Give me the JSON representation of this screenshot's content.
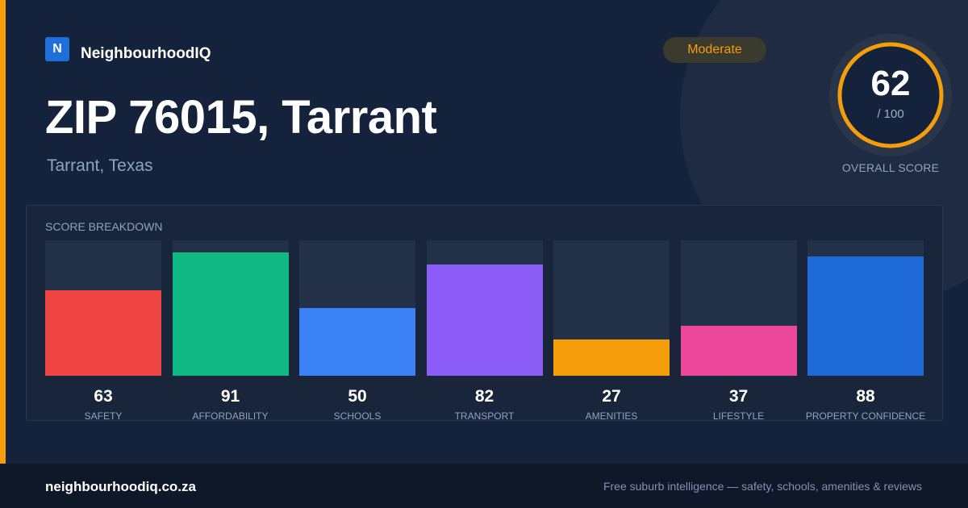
{
  "brand": {
    "logo_letter": "N",
    "name": "NeighbourhoodIQ"
  },
  "header": {
    "title": "ZIP 76015, Tarrant",
    "subtitle": "Tarrant, Texas",
    "badge": "Moderate"
  },
  "overall": {
    "score": "62",
    "max": "/ 100",
    "label": "OVERALL SCORE",
    "fraction": 0.62
  },
  "breakdown": {
    "title": "SCORE BREAKDOWN",
    "items": [
      {
        "label": "SAFETY",
        "value": 63,
        "color": "#ef4444"
      },
      {
        "label": "AFFORDABILITY",
        "value": 91,
        "color": "#10b981"
      },
      {
        "label": "SCHOOLS",
        "value": 50,
        "color": "#3b82f6"
      },
      {
        "label": "TRANSPORT",
        "value": 82,
        "color": "#8b5cf6"
      },
      {
        "label": "AMENITIES",
        "value": 27,
        "color": "#f59e0b"
      },
      {
        "label": "LIFESTYLE",
        "value": 37,
        "color": "#ec4899"
      },
      {
        "label": "PROPERTY CONFIDENCE",
        "value": 88,
        "color": "#1d6ad8"
      }
    ]
  },
  "footer": {
    "domain": "neighbourhoodiq.co.za",
    "tagline": "Free suburb intelligence — safety, schools, amenities & reviews"
  },
  "colors": {
    "accent": "#f59e0b",
    "brand": "#1e6fdc",
    "background": "#15223b"
  }
}
